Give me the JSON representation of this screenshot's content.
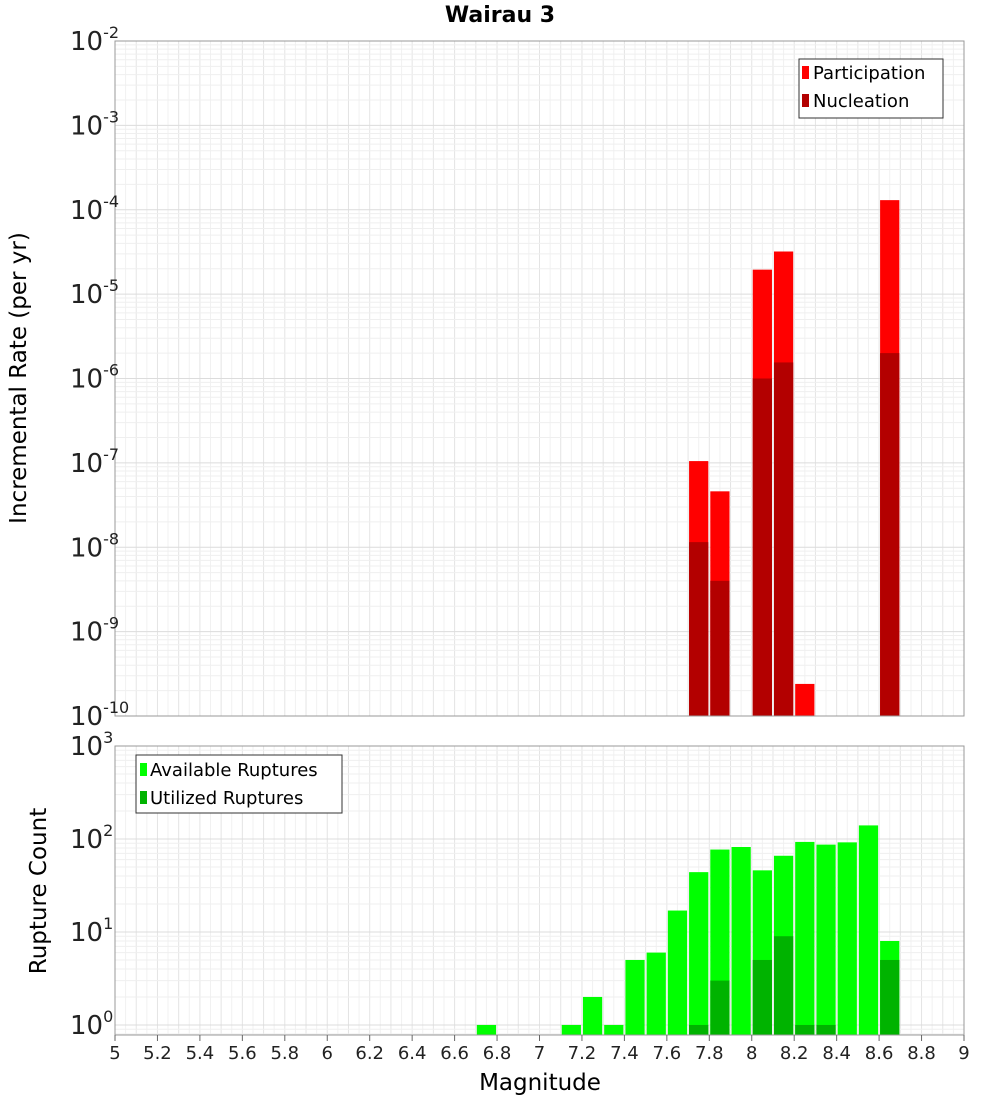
{
  "chart_data": [
    {
      "type": "bar",
      "title": "Wairau 3",
      "xlabel": "Magnitude",
      "ylabel": "Incremental Rate (per yr)",
      "yscale": "log",
      "ylim": [
        1e-10,
        0.01
      ],
      "xlim": [
        5,
        9
      ],
      "bar_width": 0.1,
      "grid": true,
      "legend_position": "top-right",
      "series": [
        {
          "name": "Participation",
          "color": "#ff0000",
          "x": [
            7.75,
            7.85,
            8.05,
            8.15,
            8.25,
            8.65
          ],
          "values": [
            1.05e-07,
            4.6e-08,
            1.95e-05,
            3.2e-05,
            2.4e-10,
            0.00013
          ]
        },
        {
          "name": "Nucleation",
          "color": "#b30000",
          "x": [
            7.75,
            7.85,
            8.05,
            8.15,
            8.65
          ],
          "values": [
            1.15e-08,
            4e-09,
            1e-06,
            1.55e-06,
            2e-06
          ]
        }
      ],
      "y_ticks": [
        {
          "base": "10",
          "exp": "-2"
        },
        {
          "base": "10",
          "exp": "-3"
        },
        {
          "base": "10",
          "exp": "-4"
        },
        {
          "base": "10",
          "exp": "-5"
        },
        {
          "base": "10",
          "exp": "-6"
        },
        {
          "base": "10",
          "exp": "-7"
        },
        {
          "base": "10",
          "exp": "-8"
        },
        {
          "base": "10",
          "exp": "-9"
        },
        {
          "base": "10",
          "exp": "-10"
        }
      ]
    },
    {
      "type": "bar",
      "title": "",
      "xlabel": "Magnitude",
      "ylabel": "Rupture Count",
      "yscale": "log",
      "ylim": [
        0.78,
        1000
      ],
      "xlim": [
        5,
        9
      ],
      "bar_width": 0.1,
      "grid": true,
      "legend_position": "top-left",
      "series": [
        {
          "name": "Available Ruptures",
          "color": "#00ff00",
          "x": [
            6.75,
            7.15,
            7.25,
            7.35,
            7.45,
            7.55,
            7.65,
            7.75,
            7.85,
            7.95,
            8.05,
            8.15,
            8.25,
            8.35,
            8.45,
            8.55,
            8.65
          ],
          "values": [
            1,
            1,
            2,
            1,
            5,
            6,
            17,
            44,
            77,
            82,
            46,
            66,
            93,
            87,
            92,
            140,
            8
          ]
        },
        {
          "name": "Utilized Ruptures",
          "color": "#00b300",
          "x": [
            7.75,
            7.85,
            8.05,
            8.15,
            8.25,
            8.35,
            8.65
          ],
          "values": [
            1,
            3,
            5,
            9,
            1,
            1,
            5
          ]
        }
      ],
      "y_ticks": [
        {
          "base": "10",
          "exp": "3"
        },
        {
          "base": "10",
          "exp": "2"
        },
        {
          "base": "10",
          "exp": "1"
        },
        {
          "base": "10",
          "exp": "0"
        }
      ]
    }
  ],
  "x_tick_labels": [
    "5",
    "5.2",
    "5.4",
    "5.6",
    "5.8",
    "6",
    "6.2",
    "6.4",
    "6.6",
    "6.8",
    "7",
    "7.2",
    "7.4",
    "7.6",
    "7.8",
    "8",
    "8.2",
    "8.4",
    "8.6",
    "8.8",
    "9"
  ]
}
